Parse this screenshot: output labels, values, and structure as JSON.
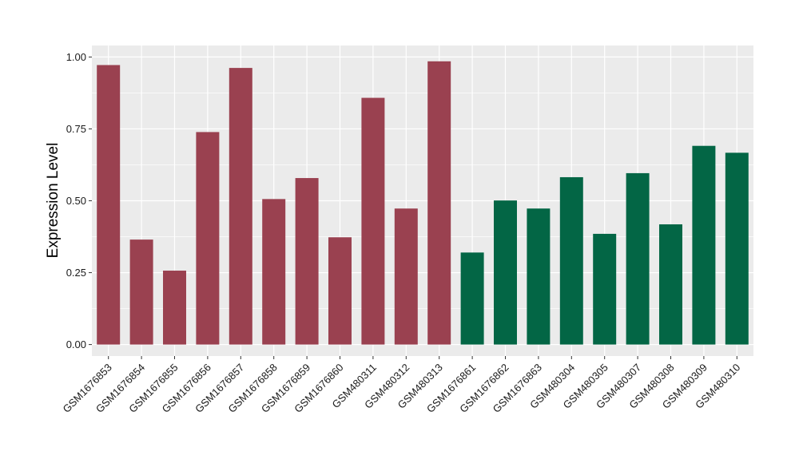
{
  "chart_data": {
    "type": "bar",
    "title": "",
    "xlabel": "",
    "ylabel": "Expression Level",
    "ylim": [
      -0.04,
      1.04
    ],
    "yticks": [
      0.0,
      0.25,
      0.5,
      0.75,
      1.0
    ],
    "ytick_labels": [
      "0.00",
      "0.25",
      "0.50",
      "0.75",
      "1.00"
    ],
    "grid": true,
    "legend": "none",
    "categories": [
      "GSM1676853",
      "GSM1676854",
      "GSM1676855",
      "GSM1676856",
      "GSM1676857",
      "GSM1676858",
      "GSM1676859",
      "GSM1676860",
      "GSM480311",
      "GSM480312",
      "GSM480313",
      "GSM1676861",
      "GSM1676862",
      "GSM1676863",
      "GSM480304",
      "GSM480305",
      "GSM480307",
      "GSM480308",
      "GSM480309",
      "GSM480310"
    ],
    "values": [
      0.972,
      0.365,
      0.257,
      0.739,
      0.962,
      0.506,
      0.579,
      0.373,
      0.858,
      0.473,
      0.985,
      0.32,
      0.501,
      0.473,
      0.582,
      0.385,
      0.596,
      0.418,
      0.691,
      0.667
    ],
    "groups": [
      0,
      0,
      0,
      0,
      0,
      0,
      0,
      0,
      0,
      0,
      0,
      1,
      1,
      1,
      1,
      1,
      1,
      1,
      1,
      1
    ],
    "group_colors": [
      "#9a4150",
      "#036645"
    ],
    "panel_background": "#ebebeb",
    "grid_color": "#ffffff"
  }
}
